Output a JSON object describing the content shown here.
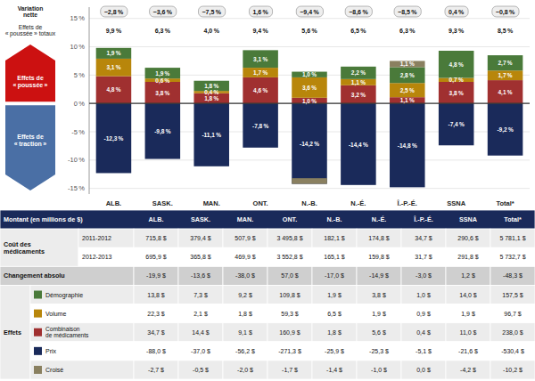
{
  "chart_data": {
    "type": "bar",
    "stacked": true,
    "data_labels": true,
    "grid": true,
    "categories": [
      "ALB.",
      "SASK.",
      "MAN.",
      "ONT.",
      "N.-B.",
      "N.-É.",
      "Î.-P.-É.",
      "SSNA",
      "Total*"
    ],
    "ylim": [
      -16,
      17
    ],
    "yticks": [
      {
        "value": -15,
        "label": "-15 %"
      },
      {
        "value": -10,
        "label": "-10 %"
      },
      {
        "value": -5,
        "label": "-5 %"
      },
      {
        "value": 0,
        "label": "0 %"
      },
      {
        "value": 5,
        "label": "5 %"
      },
      {
        "value": 10,
        "label": "10 %"
      },
      {
        "value": 15,
        "label": "15 %"
      }
    ],
    "series": [
      {
        "color": "#a03030",
        "values": [
          4.8,
          3.8,
          1.8,
          4.6,
          1.0,
          3.2,
          1.1,
          3.8,
          4.1
        ],
        "value_labels": [
          "4,8 %",
          "3,8 %",
          "1,8 %",
          "4,6 %",
          "1,0 %",
          "3,2 %",
          "1,1 %",
          "3,8 %",
          "4,1 %"
        ]
      },
      {
        "color": "#b8860b",
        "values": [
          3.1,
          0.6,
          0.4,
          1.7,
          3.6,
          1.1,
          2.5,
          0.7,
          1.7
        ],
        "value_labels": [
          "3,1 %",
          "0,6 %",
          "0,4 %",
          "1,7 %",
          "3,6 %",
          "1,1 %",
          "2,5 %",
          "0,7 %",
          "1,7 %"
        ]
      },
      {
        "color": "#4a7a3a",
        "values": [
          1.9,
          1.9,
          1.8,
          3.1,
          1.0,
          2.2,
          2.8,
          4.8,
          2.7
        ],
        "value_labels": [
          "1,9 %",
          "1,9 %",
          "1,8 %",
          "3,1 %",
          "1,0 %",
          "2,2 %",
          "2,8 %",
          "4,8 %",
          "2,7 %"
        ]
      },
      {
        "color": "#8a8060",
        "values": [
          0.0,
          0.0,
          0.0,
          0.0,
          0.0,
          0.0,
          1.1,
          0.0,
          0.0
        ],
        "value_labels": [
          null,
          null,
          null,
          null,
          null,
          null,
          "1,1 %",
          null,
          null
        ]
      },
      {
        "color": "#1a2a5a",
        "values": [
          -12.3,
          -9.8,
          -11.1,
          -7.8,
          -14.2,
          -14.4,
          -14.8,
          -7.4,
          -9.2
        ],
        "value_labels": [
          "-12,3 %",
          "-9,8 %",
          "-11,1 %",
          "-7,8 %",
          "-14,2 %",
          "-14,4 %",
          "-14,8 %",
          "-7,4 %",
          "-9,2 %"
        ]
      },
      {
        "color": "#8a8060",
        "values": [
          0.0,
          0.0,
          0.0,
          0.0,
          1.0,
          0.0,
          0.0,
          0.0,
          0.0
        ],
        "value_labels": [
          null,
          null,
          null,
          null,
          null,
          null,
          null,
          null,
          null
        ]
      }
    ],
    "annotations": [
      {
        "label": "Variation\nnette",
        "values": [
          -2.8,
          -3.6,
          -7.5,
          1.6,
          -9.4,
          -8.6,
          -8.5,
          0.4,
          -0.8
        ],
        "value_labels": [
          "−2,8 %",
          "−3,6 %",
          "−7,5 %",
          "1,6 %",
          "−9,4 %",
          "−8,6 %",
          "−8,5 %",
          "0,4 %",
          "−0,8 %"
        ]
      },
      {
        "label": "Effets de\n« poussée » totaux",
        "values": [
          9.9,
          6.3,
          4.0,
          9.4,
          5.6,
          6.5,
          6.3,
          9.3,
          8.5
        ],
        "value_labels": [
          "9,9 %",
          "6,3 %",
          "4,0 %",
          "9,4 %",
          "5,6 %",
          "6,5 %",
          "6,3 %",
          "9,3 %",
          "8,5 %"
        ]
      }
    ],
    "side_labels": [
      {
        "text": "Effets de\n« poussée »",
        "color": "#cc1111"
      },
      {
        "text": "Effets de\n« traction »",
        "color": "#4a6fa5"
      }
    ],
    "table": {
      "color": "#1a2a5a",
      "headers": [
        "Montant (en millions de $)",
        "ALB.",
        "SASK.",
        "MAN.",
        "ONT.",
        "N.-B.",
        "N.-É.",
        "Î.-P.-É.",
        "SSNA",
        "Total*"
      ],
      "groups": [
        {
          "label": "Coût des\nmédicaments",
          "rows": [
            {
              "label": "2011-2012",
              "values": [
                715.8,
                379.4,
                507.9,
                3495.8,
                182.1,
                174.8,
                34.7,
                290.6,
                5781.1
              ],
              "value_labels": [
                "715,8 $",
                "379,4 $",
                "507,9 $",
                "3 495,8 $",
                "182,1 $",
                "174,8 $",
                "34,7 $",
                "290,6 $",
                "5 781,1 $"
              ]
            },
            {
              "label": "2012-2013",
              "values": [
                695.9,
                365.8,
                469.9,
                3552.8,
                165.1,
                159.8,
                31.7,
                291.8,
                5732.7
              ],
              "value_labels": [
                "695,9 $",
                "365,8 $",
                "469,9 $",
                "3 552,8 $",
                "165,1 $",
                "159,8 $",
                "31,7 $",
                "291,8 $",
                "5 732,7 $"
              ]
            }
          ]
        },
        {
          "label": "Changement absolu",
          "rows": [
            {
              "values": [
                -19.9,
                -13.6,
                -38.0,
                57.0,
                -17.0,
                -14.9,
                -3.0,
                1.2,
                -48.3
              ],
              "value_labels": [
                "-19,9 $",
                "-13,6 $",
                "-38,0 $",
                "57,0 $",
                "-17,0 $",
                "-14,9 $",
                "-3,0 $",
                "1,2 $",
                "-48,3 $"
              ]
            }
          ]
        },
        {
          "label": "Effets",
          "rows": [
            {
              "label": "Démographie",
              "color": "#4a7a3a",
              "values": [
                13.8,
                7.3,
                9.2,
                109.8,
                1.9,
                3.8,
                1.0,
                14.0,
                157.5
              ],
              "value_labels": [
                "13,8 $",
                "7,3 $",
                "9,2 $",
                "109,8 $",
                "1,9 $",
                "3,8 $",
                "1,0 $",
                "14,0 $",
                "157,5 $"
              ]
            },
            {
              "label": "Volume",
              "color": "#b8860b",
              "values": [
                22.3,
                2.1,
                1.8,
                59.3,
                6.5,
                1.9,
                0.9,
                1.9,
                96.7
              ],
              "value_labels": [
                "22,3 $",
                "2,1 $",
                "1,8 $",
                "59,3 $",
                "6,5 $",
                "1,9 $",
                "0,9 $",
                "1,9 $",
                "96,7 $"
              ]
            },
            {
              "label": "Combinaison\nde médicaments",
              "color": "#a03030",
              "values": [
                34.7,
                14.4,
                9.1,
                160.9,
                1.8,
                5.6,
                0.4,
                11.0,
                238.0
              ],
              "value_labels": [
                "34,7 $",
                "14,4 $",
                "9,1 $",
                "160,9 $",
                "1,8 $",
                "5,6 $",
                "0,4 $",
                "11,0 $",
                "238,0 $"
              ]
            },
            {
              "label": "Prix",
              "color": "#1a2a5a",
              "values": [
                -88.0,
                -37.0,
                -56.2,
                -271.3,
                -25.9,
                -25.3,
                -5.1,
                -21.6,
                -530.4
              ],
              "value_labels": [
                "-88,0 $",
                "-37,0 $",
                "-56,2 $",
                "-271,3 $",
                "-25,9 $",
                "-25,3 $",
                "-5,1 $",
                "-21,6 $",
                "-530,4 $"
              ]
            },
            {
              "label": "Croisé",
              "color": "#8a8060",
              "values": [
                -2.7,
                -0.5,
                -2.0,
                -1.7,
                -1.4,
                -1.0,
                0.0,
                -4.2,
                -10.2
              ],
              "value_labels": [
                "-2,7 $",
                "-0,5 $",
                "-2,0 $",
                "-1,7 $",
                "-1,4 $",
                "-1,0 $",
                "0,0 $",
                "-4,2 $",
                "-10,2 $"
              ]
            }
          ]
        }
      ]
    }
  }
}
